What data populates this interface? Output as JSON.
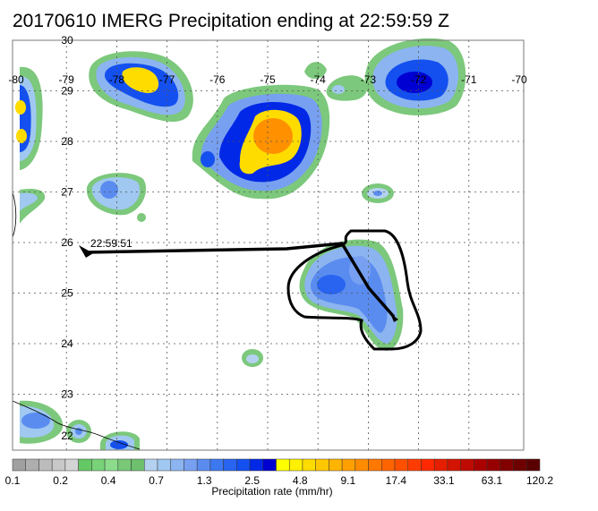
{
  "title": "20170610 IMERG Precipitation ending at 22:59:59 Z",
  "map": {
    "lon_labels": [
      "-80",
      "-79",
      "-78",
      "-77",
      "-76",
      "-75",
      "-74",
      "-73",
      "-72",
      "-71",
      "-70"
    ],
    "lat_labels": [
      "30",
      "29",
      "28",
      "27",
      "26",
      "25",
      "24",
      "23",
      "22"
    ],
    "lon_range": [
      -80,
      -70
    ],
    "lat_range": [
      22,
      30
    ],
    "gridlines": "dashed",
    "track_label": "22:59:51"
  },
  "colorbar": {
    "label": "Precipitation rate (mm/hr)",
    "tick_labels": [
      "0.1",
      "0.2",
      "0.4",
      "0.7",
      "1.3",
      "2.5",
      "4.8",
      "9.1",
      "17.4",
      "33.1",
      "63.1",
      "120.2"
    ],
    "colors": [
      "#a0a0a0",
      "#aeaeae",
      "#bcbcbc",
      "#c8c8c8",
      "#d4d4d4",
      "#64c864",
      "#78d278",
      "#8cdc8c",
      "#78c878",
      "#6ec06e",
      "#b4d2f0",
      "#a0c8f0",
      "#8cb4f0",
      "#78a0f0",
      "#5a8cf0",
      "#3c78f0",
      "#2864f0",
      "#1450f0",
      "#0028e6",
      "#0000d2",
      "#ffff00",
      "#fff000",
      "#ffdc00",
      "#ffc800",
      "#ffb400",
      "#ffa000",
      "#ff8c00",
      "#ff7800",
      "#ff6400",
      "#ff5000",
      "#ff3c00",
      "#ff2800",
      "#e61e00",
      "#d21400",
      "#be0a00",
      "#aa0000",
      "#960000",
      "#820000",
      "#6e0000",
      "#5a0000"
    ]
  }
}
